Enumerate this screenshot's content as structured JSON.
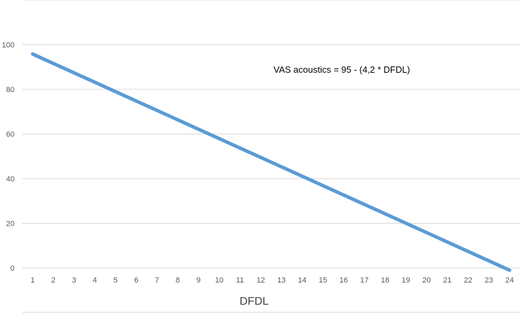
{
  "chart_data": {
    "type": "line",
    "title": "",
    "xlabel": "DFDL",
    "ylabel": "",
    "annotation": "VAS acoustics = 95 - (4,2 * DFDL)",
    "categories": [
      "1",
      "2",
      "3",
      "4",
      "5",
      "6",
      "7",
      "8",
      "9",
      "10",
      "11",
      "12",
      "13",
      "14",
      "15",
      "16",
      "17",
      "18",
      "19",
      "20",
      "21",
      "22",
      "23",
      "24"
    ],
    "y_ticks": [
      0,
      20,
      40,
      60,
      80,
      100
    ],
    "ylim": [
      0,
      120
    ],
    "grid": true,
    "series": [
      {
        "color": "#5B9BD5",
        "values": [
          95.8,
          87.9,
          83.4,
          79.2,
          75.0,
          70.8,
          66.6,
          62.4,
          58.2,
          54.0,
          49.8,
          45.6,
          41.4,
          37.2,
          33.0,
          28.8,
          24.6,
          20.4,
          16.2,
          12.0,
          7.8,
          3.6,
          0,
          -1
        ]
      }
    ],
    "colors": {
      "grid": "#d9d9d9",
      "tick_text": "#595959",
      "line": "#5B9BD5"
    }
  }
}
